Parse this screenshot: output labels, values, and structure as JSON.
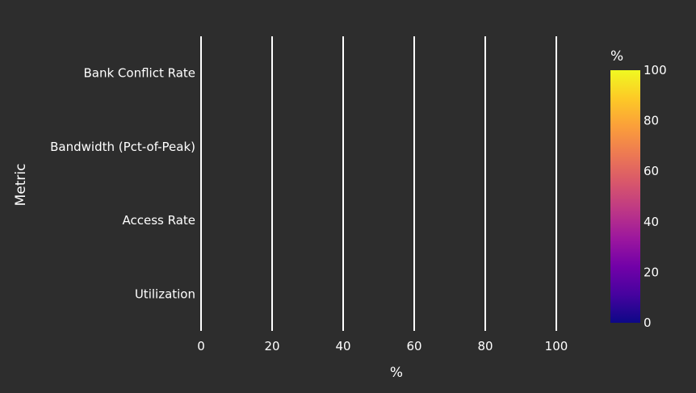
{
  "chart_data": {
    "type": "bar",
    "orientation": "horizontal",
    "categories": [
      "Bank Conflict Rate",
      "Bandwidth (Pct-of-Peak)",
      "Access Rate",
      "Utilization"
    ],
    "values": [
      0,
      0,
      0,
      0
    ],
    "xlabel": "%",
    "ylabel": "Metric",
    "xlim": [
      0,
      100
    ],
    "xticks": [
      0,
      20,
      40,
      60,
      80,
      100
    ],
    "grid": true,
    "colorbar": {
      "title": "%",
      "range": [
        0,
        100
      ],
      "ticks": [
        0,
        20,
        40,
        60,
        80,
        100
      ],
      "colors": [
        "#0d0887",
        "#46039f",
        "#7201a8",
        "#9c179e",
        "#bd3786",
        "#d8576b",
        "#ed7953",
        "#fb9f3a",
        "#fdca26",
        "#f0f921"
      ]
    },
    "background": "#2d2d2d"
  }
}
